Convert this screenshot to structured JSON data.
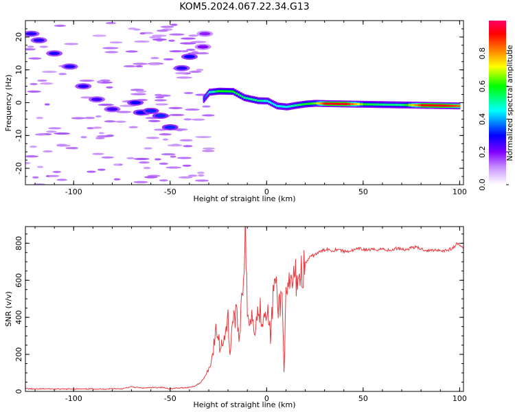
{
  "title": "KOM5.2024.067.22.34.G13",
  "chart_data": [
    {
      "type": "heatmap",
      "xlabel": "Height of straight line (km)",
      "ylabel": "Frequency (Hz)",
      "xlim": [
        -125,
        102
      ],
      "ylim": [
        -25,
        25
      ],
      "x_ticks": [
        -100,
        -50,
        0,
        50,
        100
      ],
      "y_ticks": [
        -20,
        -10,
        0,
        10,
        20
      ],
      "colorbar": {
        "label": "Normalized spectral amplitude",
        "range": [
          0,
          1
        ],
        "ticks": [
          0.0,
          0.2,
          0.4,
          0.6,
          0.8
        ],
        "colors": [
          "#ffffff",
          "#cc99ff",
          "#8000ff",
          "#0000ff",
          "#00ffff",
          "#00ff00",
          "#ffff00",
          "#ff8000",
          "#ff0000",
          "#ff0066"
        ]
      },
      "ridge": [
        {
          "x": -33,
          "freq": 1.0,
          "amp": 0.35
        },
        {
          "x": -30,
          "freq": 3.2,
          "amp": 0.45
        },
        {
          "x": -25,
          "freq": 3.5,
          "amp": 0.55
        },
        {
          "x": -18,
          "freq": 3.4,
          "amp": 0.55
        },
        {
          "x": -12,
          "freq": 1.5,
          "amp": 0.5
        },
        {
          "x": -5,
          "freq": 0.6,
          "amp": 0.5
        },
        {
          "x": 0,
          "freq": 0.5,
          "amp": 0.45
        },
        {
          "x": 5,
          "freq": -1.0,
          "amp": 0.45
        },
        {
          "x": 10,
          "freq": -1.3,
          "amp": 0.45
        },
        {
          "x": 15,
          "freq": -0.8,
          "amp": 0.5
        },
        {
          "x": 20,
          "freq": -0.4,
          "amp": 0.55
        },
        {
          "x": 25,
          "freq": -0.2,
          "amp": 0.6
        },
        {
          "x": 30,
          "freq": -0.3,
          "amp": 0.9
        },
        {
          "x": 40,
          "freq": -0.4,
          "amp": 0.92
        },
        {
          "x": 50,
          "freq": -0.5,
          "amp": 0.55
        },
        {
          "x": 60,
          "freq": -0.6,
          "amp": 0.5
        },
        {
          "x": 70,
          "freq": -0.7,
          "amp": 0.5
        },
        {
          "x": 80,
          "freq": -0.8,
          "amp": 0.9
        },
        {
          "x": 90,
          "freq": -0.9,
          "amp": 0.9
        },
        {
          "x": 100,
          "freq": -1.0,
          "amp": 0.8
        }
      ],
      "patches": [
        {
          "x": -122,
          "freq": 21,
          "amp": 0.3
        },
        {
          "x": -118,
          "freq": 19,
          "amp": 0.3
        },
        {
          "x": -110,
          "freq": 15,
          "amp": 0.3
        },
        {
          "x": -102,
          "freq": 11,
          "amp": 0.3
        },
        {
          "x": -95,
          "freq": 5,
          "amp": 0.3
        },
        {
          "x": -88,
          "freq": 1,
          "amp": 0.28
        },
        {
          "x": -80,
          "freq": -2,
          "amp": 0.28
        },
        {
          "x": -68,
          "freq": 0,
          "amp": 0.33
        },
        {
          "x": -65,
          "freq": -3,
          "amp": 0.33
        },
        {
          "x": -60,
          "freq": -2.5,
          "amp": 0.35
        },
        {
          "x": -55,
          "freq": -4,
          "amp": 0.35
        },
        {
          "x": -50,
          "freq": -7.5,
          "amp": 0.35
        },
        {
          "x": -40,
          "freq": 14,
          "amp": 0.33
        },
        {
          "x": -44,
          "freq": 10.5,
          "amp": 0.3
        },
        {
          "x": -33,
          "freq": 17,
          "amp": 0.22
        },
        {
          "x": -32,
          "freq": 21,
          "amp": 0.2
        }
      ]
    },
    {
      "type": "line",
      "xlabel": "Height of straight line (km)",
      "ylabel": "SNR (v/v)",
      "xlim": [
        -125,
        102
      ],
      "ylim": [
        0,
        890
      ],
      "x_ticks": [
        -100,
        -50,
        0,
        50,
        100
      ],
      "y_ticks": [
        0,
        200,
        400,
        600,
        800
      ],
      "color": "#e8383d",
      "series": [
        {
          "x": [
            -125,
            -120,
            -115,
            -110,
            -105,
            -100,
            -95,
            -90,
            -85,
            -80,
            -75,
            -70,
            -65,
            -60,
            -55,
            -50,
            -45,
            -40,
            -37,
            -34,
            -32,
            -30,
            -28,
            -26,
            -24,
            -22,
            -20,
            -19,
            -18,
            -16,
            -14,
            -13,
            -12,
            -11,
            -10,
            -8,
            -6,
            -4,
            -2,
            0,
            2,
            4,
            6,
            8,
            9,
            10,
            12,
            14,
            16,
            18,
            20,
            22,
            25,
            28,
            31,
            34,
            37,
            40,
            44,
            48,
            52,
            56,
            60,
            64,
            68,
            72,
            76,
            80,
            84,
            88,
            92,
            96,
            99,
            102
          ],
          "y": [
            15,
            12,
            14,
            13,
            12,
            14,
            12,
            14,
            12,
            15,
            14,
            25,
            18,
            20,
            22,
            15,
            18,
            22,
            30,
            50,
            80,
            120,
            200,
            340,
            230,
            300,
            390,
            200,
            360,
            420,
            300,
            520,
            640,
            890,
            380,
            420,
            360,
            450,
            400,
            470,
            300,
            610,
            450,
            520,
            120,
            480,
            560,
            610,
            620,
            640,
            690,
            720,
            740,
            755,
            770,
            760,
            770,
            755,
            760,
            770,
            765,
            765,
            770,
            760,
            775,
            765,
            780,
            770,
            760,
            765,
            760,
            770,
            800,
            770
          ]
        }
      ]
    }
  ]
}
